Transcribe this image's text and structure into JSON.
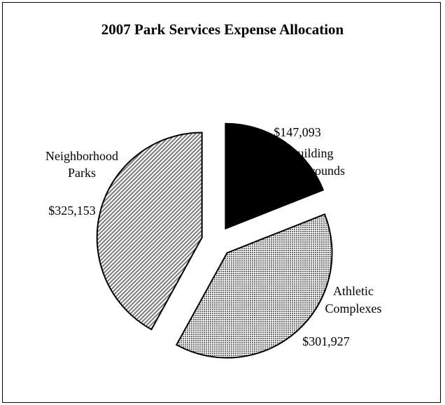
{
  "chart_data": {
    "type": "pie",
    "title": "2007 Park Services Expense Allocation",
    "exploded": true,
    "slices": [
      {
        "label_lines": [
          "Building",
          "Grounds"
        ],
        "value": 147093,
        "value_label": "$147,093",
        "fill": "#000000",
        "pattern": "solid"
      },
      {
        "label_lines": [
          "Athletic",
          "Complexes"
        ],
        "value": 301927,
        "value_label": "$301,927",
        "fill": "#9a9a9a",
        "pattern": "dots"
      },
      {
        "label_lines": [
          "Neighborhood",
          "Parks"
        ],
        "value": 325153,
        "value_label": "$325,153",
        "fill": "#c8c8c8",
        "pattern": "hatch"
      }
    ]
  }
}
